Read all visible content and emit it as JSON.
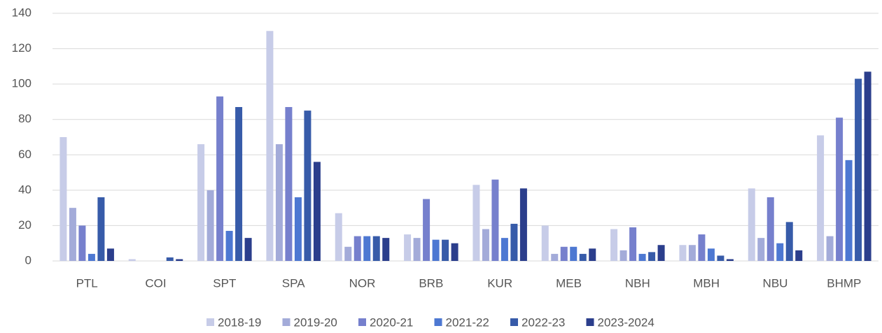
{
  "chart_data": {
    "type": "bar",
    "categories": [
      "PTL",
      "COI",
      "SPT",
      "SPA",
      "NOR",
      "BRB",
      "KUR",
      "MEB",
      "NBH",
      "MBH",
      "NBU",
      "BHMP"
    ],
    "series": [
      {
        "name": "2018-19",
        "color": "#c7cce8",
        "values": [
          70,
          1,
          66,
          130,
          27,
          15,
          43,
          20,
          18,
          9,
          41,
          71
        ]
      },
      {
        "name": "2019-20",
        "color": "#a3abd9",
        "values": [
          30,
          0,
          40,
          66,
          8,
          13,
          18,
          4,
          6,
          9,
          13,
          14
        ]
      },
      {
        "name": "2020-21",
        "color": "#7680cd",
        "values": [
          20,
          0,
          93,
          87,
          14,
          35,
          46,
          8,
          19,
          15,
          36,
          81
        ]
      },
      {
        "name": "2021-22",
        "color": "#4d78d2",
        "values": [
          4,
          0,
          17,
          36,
          14,
          12,
          13,
          8,
          4,
          7,
          10,
          57
        ]
      },
      {
        "name": "2022-23",
        "color": "#375ba9",
        "values": [
          36,
          2,
          87,
          85,
          14,
          12,
          21,
          4,
          5,
          3,
          22,
          103
        ]
      },
      {
        "name": "2023-2024",
        "color": "#2b3e8c",
        "values": [
          7,
          1,
          13,
          56,
          13,
          10,
          41,
          7,
          9,
          1,
          6,
          107
        ]
      }
    ],
    "ylim": [
      0,
      140
    ],
    "yticks": [
      0,
      20,
      40,
      60,
      80,
      100,
      120,
      140
    ],
    "grid": true,
    "legend": "bottom"
  }
}
